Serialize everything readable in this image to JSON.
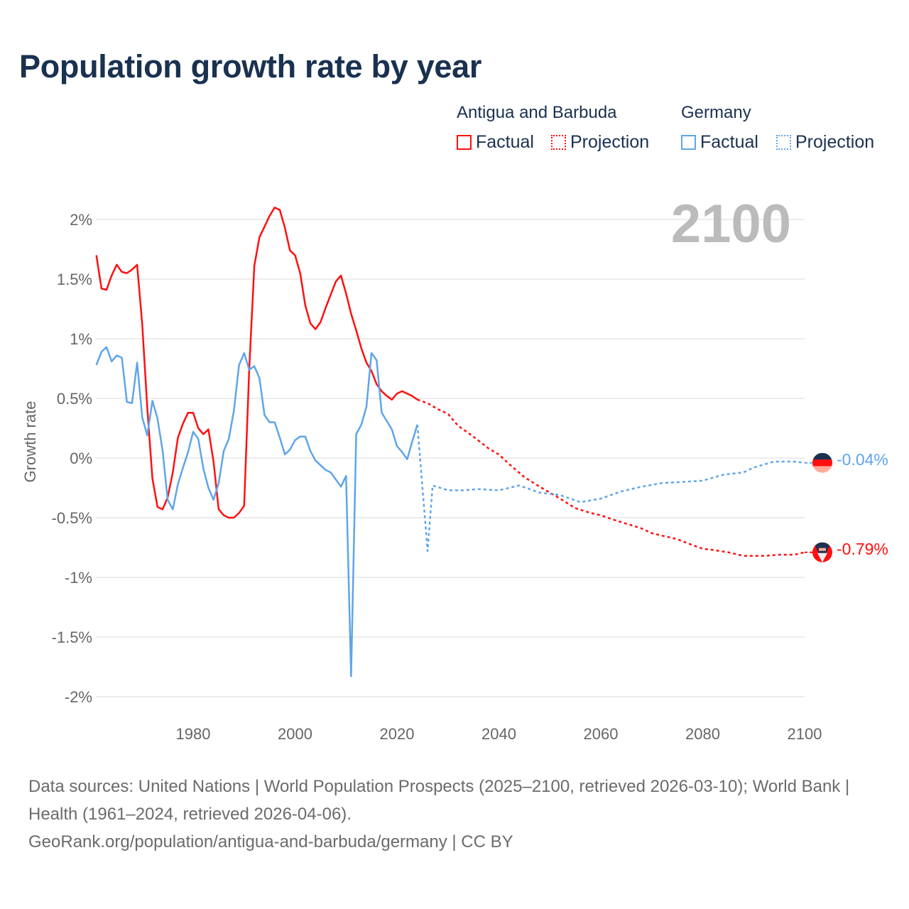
{
  "title": "Population growth rate by year",
  "legend": {
    "groups": [
      {
        "name": "Antigua and Barbuda",
        "factual": "Factual",
        "projection": "Projection",
        "color": "#ff1010"
      },
      {
        "name": "Germany",
        "factual": "Factual",
        "projection": "Projection",
        "color": "#5fa5ea"
      }
    ]
  },
  "current_year": "2100",
  "end_labels": {
    "germany": "-0.04%",
    "antigua": "-0.79%"
  },
  "footer": {
    "line1": "Data sources: United Nations | World Population Prospects (2025–2100, retrieved 2026-03-10); World Bank | Health (1961–2024, retrieved 2026-04-06).",
    "line2": "GeoRank.org/population/antigua-and-barbuda/germany | CC BY"
  },
  "chart_data": {
    "type": "line",
    "title": "Population growth rate by year",
    "xlabel": "",
    "ylabel": "Growth rate",
    "xlim": [
      1961,
      2100
    ],
    "ylim": [
      -2.2,
      2.2
    ],
    "x_ticks": [
      1980,
      2000,
      2020,
      2040,
      2060,
      2080,
      2100
    ],
    "y_ticks": [
      2,
      1.5,
      1,
      0.5,
      0,
      -0.5,
      -1,
      -1.5,
      -2
    ],
    "y_tick_labels": [
      "2%",
      "1.5%",
      "1%",
      "0.5%",
      "0%",
      "-0.5%",
      "-1%",
      "-1.5%",
      "-2%"
    ],
    "grid": true,
    "legend_position": "top-right",
    "series": [
      {
        "name": "Antigua and Barbuda",
        "kind": "Factual",
        "color": "#ff1010",
        "x": [
          1961,
          1962,
          1963,
          1964,
          1965,
          1966,
          1967,
          1968,
          1969,
          1970,
          1971,
          1972,
          1973,
          1974,
          1975,
          1976,
          1977,
          1978,
          1979,
          1980,
          1981,
          1982,
          1983,
          1984,
          1985,
          1986,
          1987,
          1988,
          1989,
          1990,
          1991,
          1992,
          1993,
          1994,
          1995,
          1996,
          1997,
          1998,
          1999,
          2000,
          2001,
          2002,
          2003,
          2004,
          2005,
          2006,
          2007,
          2008,
          2009,
          2010,
          2011,
          2012,
          2013,
          2014,
          2015,
          2016,
          2017,
          2018,
          2019,
          2020,
          2021,
          2022,
          2023,
          2024
        ],
        "y": [
          1.7,
          1.42,
          1.41,
          1.53,
          1.62,
          1.56,
          1.55,
          1.58,
          1.62,
          1.12,
          0.42,
          -0.17,
          -0.41,
          -0.43,
          -0.33,
          -0.12,
          0.17,
          0.29,
          0.38,
          0.38,
          0.25,
          0.2,
          0.24,
          -0.03,
          -0.43,
          -0.48,
          -0.5,
          -0.5,
          -0.46,
          -0.4,
          0.74,
          1.61,
          1.85,
          1.94,
          2.03,
          2.1,
          2.08,
          1.93,
          1.74,
          1.7,
          1.55,
          1.28,
          1.13,
          1.08,
          1.14,
          1.26,
          1.37,
          1.48,
          1.53,
          1.38,
          1.21,
          1.07,
          0.92,
          0.8,
          0.73,
          0.62,
          0.56,
          0.52,
          0.49,
          0.54,
          0.56,
          0.54,
          0.52,
          0.49
        ]
      },
      {
        "name": "Antigua and Barbuda",
        "kind": "Projection",
        "color": "#ff1010",
        "x": [
          2024,
          2026,
          2028,
          2030,
          2032,
          2035,
          2038,
          2040,
          2042,
          2045,
          2048,
          2050,
          2052,
          2055,
          2058,
          2060,
          2062,
          2065,
          2068,
          2070,
          2072,
          2075,
          2078,
          2080,
          2082,
          2085,
          2088,
          2090,
          2092,
          2095,
          2098,
          2100
        ],
        "y": [
          0.49,
          0.46,
          0.41,
          0.37,
          0.27,
          0.18,
          0.08,
          0.03,
          -0.05,
          -0.16,
          -0.24,
          -0.29,
          -0.34,
          -0.42,
          -0.46,
          -0.48,
          -0.51,
          -0.55,
          -0.59,
          -0.63,
          -0.65,
          -0.68,
          -0.73,
          -0.76,
          -0.77,
          -0.79,
          -0.82,
          -0.82,
          -0.82,
          -0.81,
          -0.81,
          -0.79
        ]
      },
      {
        "name": "Germany",
        "kind": "Factual",
        "color": "#5fa5ea",
        "x": [
          1961,
          1962,
          1963,
          1964,
          1965,
          1966,
          1967,
          1968,
          1969,
          1970,
          1971,
          1972,
          1973,
          1974,
          1975,
          1976,
          1977,
          1978,
          1979,
          1980,
          1981,
          1982,
          1983,
          1984,
          1985,
          1986,
          1987,
          1988,
          1989,
          1990,
          1991,
          1992,
          1993,
          1994,
          1995,
          1996,
          1997,
          1998,
          1999,
          2000,
          2001,
          2002,
          2003,
          2004,
          2005,
          2006,
          2007,
          2008,
          2009,
          2010,
          2011,
          2012,
          2013,
          2014,
          2015,
          2016,
          2017,
          2018,
          2019,
          2020,
          2021,
          2022,
          2023,
          2024
        ],
        "y": [
          0.78,
          0.89,
          0.93,
          0.81,
          0.86,
          0.84,
          0.47,
          0.46,
          0.8,
          0.34,
          0.19,
          0.48,
          0.33,
          0.06,
          -0.35,
          -0.43,
          -0.22,
          -0.08,
          0.05,
          0.22,
          0.16,
          -0.09,
          -0.25,
          -0.35,
          -0.21,
          0.06,
          0.16,
          0.4,
          0.78,
          0.88,
          0.74,
          0.77,
          0.67,
          0.36,
          0.3,
          0.3,
          0.17,
          0.03,
          0.07,
          0.15,
          0.18,
          0.18,
          0.06,
          -0.02,
          -0.06,
          -0.1,
          -0.12,
          -0.18,
          -0.24,
          -0.15,
          -1.83,
          0.2,
          0.28,
          0.43,
          0.88,
          0.82,
          0.38,
          0.31,
          0.24,
          0.1,
          0.05,
          -0.01,
          0.14,
          0.28
        ]
      },
      {
        "name": "Germany",
        "kind": "Projection",
        "color": "#5fa5ea",
        "x": [
          2024,
          2025,
          2026,
          2027,
          2030,
          2033,
          2036,
          2040,
          2044,
          2048,
          2052,
          2056,
          2060,
          2064,
          2068,
          2072,
          2076,
          2080,
          2084,
          2088,
          2090,
          2094,
          2098,
          2100
        ],
        "y": [
          0.28,
          -0.25,
          -0.78,
          -0.23,
          -0.27,
          -0.27,
          -0.26,
          -0.27,
          -0.23,
          -0.29,
          -0.31,
          -0.37,
          -0.34,
          -0.28,
          -0.24,
          -0.21,
          -0.2,
          -0.19,
          -0.14,
          -0.12,
          -0.08,
          -0.03,
          -0.03,
          -0.04
        ]
      }
    ]
  }
}
